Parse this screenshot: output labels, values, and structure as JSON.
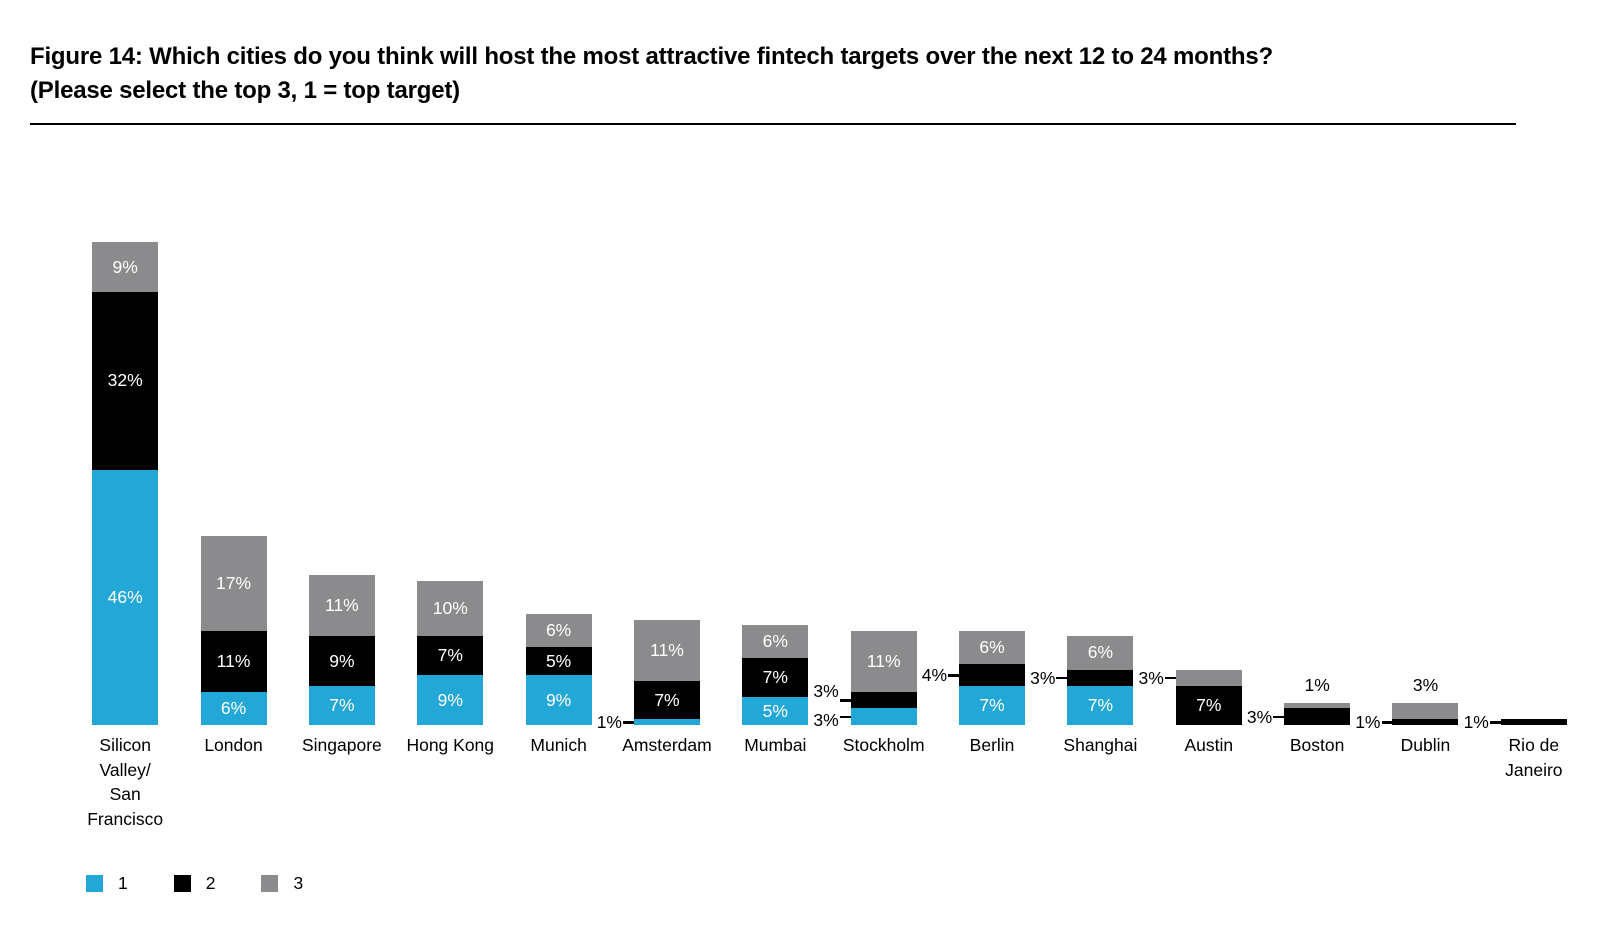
{
  "header": {
    "title_line1": "Figure 14: Which cities do you think will host the most attractive fintech targets over the next 12 to 24 months?",
    "title_line2": "(Please select the top 3, 1 = top target)"
  },
  "chart_data": {
    "type": "bar",
    "stacked": true,
    "title": "Figure 14: Which cities do you think will host the most attractive fintech targets over the next 12 to 24 months? (Please select the top 3, 1 = top target)",
    "xlabel": "",
    "ylabel": "",
    "ylim": [
      0,
      100
    ],
    "grid": false,
    "legend_position": "bottom-left",
    "yticks": [
      {
        "value": 0,
        "label": "0%"
      },
      {
        "value": 20,
        "label": "20%"
      },
      {
        "value": 40,
        "label": "40%"
      },
      {
        "value": 60,
        "label": "60%"
      },
      {
        "value": 80,
        "label": "80%"
      },
      {
        "value": 100,
        "label": "100%"
      }
    ],
    "categories": [
      "Silicon Valley/ San Francisco",
      "London",
      "Singapore",
      "Hong Kong",
      "Munich",
      "Amsterdam",
      "Mumbai",
      "Stockholm",
      "Berlin",
      "Shanghai",
      "Austin",
      "Boston",
      "Dublin",
      "Rio de Janeiro"
    ],
    "series": [
      {
        "name": "1",
        "color": "#22A7D6",
        "values": [
          46,
          6,
          7,
          9,
          9,
          1,
          5,
          3,
          7,
          7,
          0,
          0,
          0,
          0
        ],
        "label_modes": [
          "in",
          "in",
          "in",
          "in",
          "in",
          "left",
          "in",
          "left",
          "in",
          "in",
          "none",
          "none",
          "none",
          "none"
        ],
        "label_dy": {
          "7": 3
        }
      },
      {
        "name": "2",
        "color": "#000000",
        "values": [
          32,
          11,
          9,
          7,
          5,
          7,
          7,
          3,
          4,
          3,
          7,
          3,
          1,
          1
        ],
        "label_modes": [
          "in",
          "in",
          "in",
          "in",
          "in",
          "in",
          "in",
          "left",
          "left",
          "left",
          "in",
          "left",
          "left",
          "left"
        ],
        "label_dy": {
          "7": -9
        }
      },
      {
        "name": "3",
        "color": "#8B8B8D",
        "values": [
          9,
          17,
          11,
          10,
          6,
          11,
          6,
          11,
          6,
          6,
          3,
          1,
          3,
          0
        ],
        "label_modes": [
          "in",
          "in",
          "in",
          "in",
          "in",
          "in",
          "in",
          "in",
          "in",
          "in",
          "left",
          "above",
          "above",
          "none"
        ],
        "label_dy": {}
      }
    ]
  }
}
